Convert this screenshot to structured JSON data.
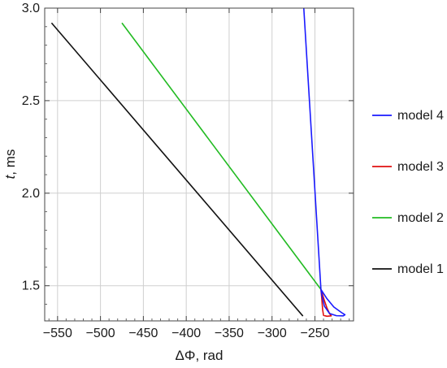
{
  "chart_data": {
    "type": "line",
    "xlabel": "ΔΦ, rad",
    "ylabel_var": "t",
    "ylabel_unit": ", ms",
    "xlim": [
      -565,
      -205
    ],
    "ylim": [
      1.31,
      3.0
    ],
    "xticks": [
      -550,
      -500,
      -450,
      -400,
      -350,
      -300,
      -250
    ],
    "yticks": [
      1.5,
      2.0,
      2.5,
      3.0
    ],
    "ytick_labels": [
      "1.5",
      "2.0",
      "2.5",
      "3.0"
    ],
    "grid": true,
    "legend_placement": "right",
    "series": [
      {
        "name": "model 4",
        "color": "#1a1aff",
        "points": [
          [
            -263,
            3.0
          ],
          [
            -243,
            1.48
          ],
          [
            -236,
            1.43
          ],
          [
            -228,
            1.385
          ],
          [
            -219,
            1.355
          ],
          [
            -215,
            1.343
          ],
          [
            -217,
            1.337
          ],
          [
            -225,
            1.338
          ],
          [
            -233,
            1.35
          ],
          [
            -239,
            1.39
          ],
          [
            -242,
            1.45
          ],
          [
            -243,
            1.48
          ]
        ]
      },
      {
        "name": "model 3",
        "color": "#e01010",
        "points": [
          [
            -243,
            1.48
          ],
          [
            -239,
            1.42
          ],
          [
            -236,
            1.38
          ],
          [
            -233,
            1.35
          ],
          [
            -231,
            1.337
          ],
          [
            -236,
            1.335
          ],
          [
            -240,
            1.34
          ],
          [
            -241,
            1.37
          ],
          [
            -242,
            1.43
          ],
          [
            -243,
            1.48
          ]
        ]
      },
      {
        "name": "model 2",
        "color": "#22bb22",
        "points": [
          [
            -475,
            2.92
          ],
          [
            -243,
            1.48
          ]
        ]
      },
      {
        "name": "model 1",
        "color": "#111111",
        "points": [
          [
            -557,
            2.92
          ],
          [
            -264,
            1.336
          ]
        ]
      }
    ]
  }
}
